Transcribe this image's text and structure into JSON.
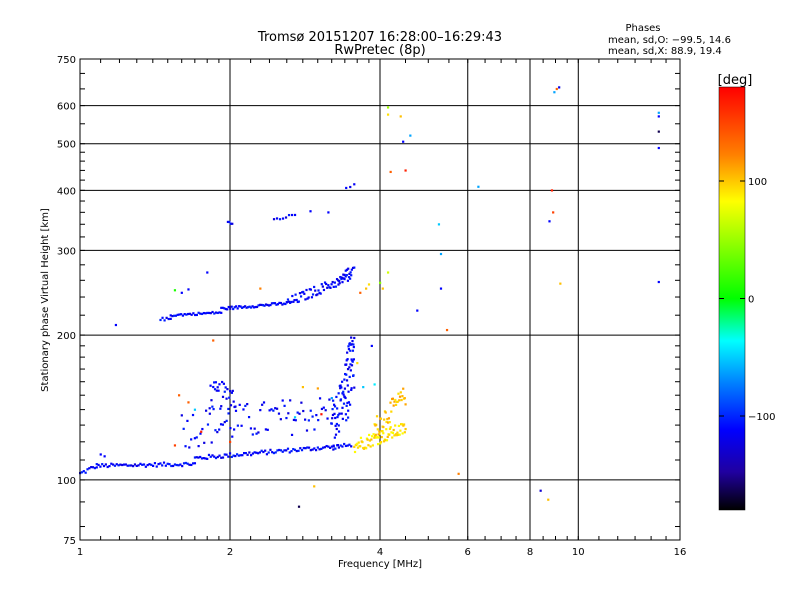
{
  "chart_data": {
    "type": "scatter",
    "title": "Tromsø 20151207 16:28:00–16:29:43",
    "subtitle": "RwPretec (8p)",
    "xlabel": "Frequency [MHz]",
    "ylabel": "Stationary phase Virtual Height [km]",
    "xscale": "log",
    "yscale": "log",
    "xlim": [
      1,
      16
    ],
    "ylim": [
      75,
      750
    ],
    "xticks": [
      1,
      2,
      4,
      6,
      8,
      10,
      16
    ],
    "xtick_labels": [
      "1",
      "2",
      "4",
      "6",
      "8",
      "10",
      "16"
    ],
    "yticks": [
      75,
      100,
      200,
      300,
      400,
      500,
      600,
      750
    ],
    "ytick_labels": [
      "75",
      "100",
      "200",
      "300",
      "400",
      "500",
      "600",
      "750"
    ],
    "grid": true,
    "stats": {
      "title": "Phases",
      "line_o": "mean, sd,O: −99.5, 14.6",
      "line_x": "mean, sd,X:  88.9, 19.4"
    },
    "colorbar": {
      "label": "[deg]",
      "min": -180,
      "max": 180,
      "ticks": [
        100,
        0,
        -100
      ],
      "tick_labels": [
        "100",
        "0",
        "−100"
      ]
    },
    "traces": [
      {
        "x0": 1.0,
        "x1": 1.08,
        "h0": 103,
        "h1": 107,
        "n": 10,
        "jitter": 1.2,
        "phase": -100
      },
      {
        "x0": 1.08,
        "x1": 1.7,
        "h0": 107,
        "h1": 108,
        "n": 55,
        "jitter": 1.0,
        "phase": -100
      },
      {
        "x0": 1.7,
        "x1": 3.5,
        "h0": 111,
        "h1": 118,
        "n": 90,
        "jitter": 1.2,
        "phase": -100
      },
      {
        "x0": 1.82,
        "x1": 2.05,
        "h0": 150,
        "h1": 150,
        "n": 30,
        "jitter": 10,
        "phase": -100
      },
      {
        "x0": 1.6,
        "x1": 3.45,
        "h0": 128,
        "h1": 140,
        "n": 90,
        "jitter": 12,
        "phase": -100
      },
      {
        "x0": 3.2,
        "x1": 3.55,
        "h0": 125,
        "h1": 165,
        "n": 60,
        "jitter": 18,
        "phase": -100
      },
      {
        "x0": 3.4,
        "x1": 3.55,
        "h0": 165,
        "h1": 200,
        "n": 22,
        "jitter": 12,
        "phase": -100
      },
      {
        "x0": 3.55,
        "x1": 4.5,
        "h0": 118,
        "h1": 128,
        "n": 70,
        "jitter": 4,
        "phase": 110
      },
      {
        "x0": 3.9,
        "x1": 4.5,
        "h0": 128,
        "h1": 150,
        "n": 40,
        "jitter": 7,
        "phase": 120
      },
      {
        "x0": 1.45,
        "x1": 1.52,
        "h0": 216,
        "h1": 216,
        "n": 6,
        "jitter": 1.5,
        "phase": -100
      },
      {
        "x0": 1.52,
        "x1": 1.92,
        "h0": 220,
        "h1": 223,
        "n": 30,
        "jitter": 1.2,
        "phase": -100
      },
      {
        "x0": 1.92,
        "x1": 2.6,
        "h0": 227,
        "h1": 233,
        "n": 45,
        "jitter": 1.5,
        "phase": -100
      },
      {
        "x0": 2.6,
        "x1": 3.5,
        "h0": 233,
        "h1": 265,
        "n": 60,
        "jitter": 6,
        "phase": -100
      },
      {
        "x0": 3.3,
        "x1": 3.55,
        "h0": 255,
        "h1": 282,
        "n": 14,
        "jitter": 6,
        "phase": -100
      },
      {
        "x0": 1.98,
        "x1": 2.02,
        "h0": 343,
        "h1": 342,
        "n": 4,
        "jitter": 1.5,
        "phase": -100
      },
      {
        "x0": 2.45,
        "x1": 2.7,
        "h0": 348,
        "h1": 356,
        "n": 8,
        "jitter": 2,
        "phase": -100
      },
      {
        "x0": 3.42,
        "x1": 3.55,
        "h0": 405,
        "h1": 412,
        "n": 3,
        "jitter": 2,
        "phase": -100
      }
    ],
    "points": [
      {
        "x": 1.18,
        "y": 210,
        "phase": -100
      },
      {
        "x": 1.1,
        "y": 113,
        "phase": -100
      },
      {
        "x": 1.12,
        "y": 112,
        "phase": -100
      },
      {
        "x": 1.55,
        "y": 248,
        "phase": 10
      },
      {
        "x": 1.6,
        "y": 245,
        "phase": -100
      },
      {
        "x": 1.65,
        "y": 249,
        "phase": -100
      },
      {
        "x": 1.8,
        "y": 270,
        "phase": -100
      },
      {
        "x": 1.85,
        "y": 195,
        "phase": 150
      },
      {
        "x": 1.65,
        "y": 145,
        "phase": 150
      },
      {
        "x": 1.58,
        "y": 150,
        "phase": 150
      },
      {
        "x": 1.7,
        "y": 140,
        "phase": -30
      },
      {
        "x": 1.75,
        "y": 126,
        "phase": 170
      },
      {
        "x": 1.55,
        "y": 118,
        "phase": 160
      },
      {
        "x": 2.0,
        "y": 120,
        "phase": 160
      },
      {
        "x": 2.3,
        "y": 250,
        "phase": 140
      },
      {
        "x": 2.7,
        "y": 135,
        "phase": -30
      },
      {
        "x": 2.8,
        "y": 156,
        "phase": 120
      },
      {
        "x": 2.9,
        "y": 362,
        "phase": -100
      },
      {
        "x": 3.0,
        "y": 155,
        "phase": 130
      },
      {
        "x": 3.05,
        "y": 137,
        "phase": 175
      },
      {
        "x": 3.15,
        "y": 360,
        "phase": -100
      },
      {
        "x": 3.2,
        "y": 148,
        "phase": -40
      },
      {
        "x": 3.6,
        "y": 175,
        "phase": 110
      },
      {
        "x": 3.65,
        "y": 245,
        "phase": 150
      },
      {
        "x": 3.7,
        "y": 156,
        "phase": -30
      },
      {
        "x": 3.75,
        "y": 250,
        "phase": 120
      },
      {
        "x": 3.8,
        "y": 255,
        "phase": 110
      },
      {
        "x": 3.85,
        "y": 190,
        "phase": -100
      },
      {
        "x": 3.9,
        "y": 158,
        "phase": -20
      },
      {
        "x": 4.0,
        "y": 257,
        "phase": 50
      },
      {
        "x": 4.05,
        "y": 250,
        "phase": 120
      },
      {
        "x": 4.15,
        "y": 270,
        "phase": 80
      },
      {
        "x": 4.15,
        "y": 595,
        "phase": 60
      },
      {
        "x": 4.15,
        "y": 575,
        "phase": 110
      },
      {
        "x": 4.2,
        "y": 437,
        "phase": 150
      },
      {
        "x": 4.4,
        "y": 570,
        "phase": 120
      },
      {
        "x": 4.45,
        "y": 505,
        "phase": -100
      },
      {
        "x": 4.5,
        "y": 440,
        "phase": 170
      },
      {
        "x": 4.6,
        "y": 520,
        "phase": -40
      },
      {
        "x": 4.75,
        "y": 225,
        "phase": -100
      },
      {
        "x": 5.25,
        "y": 340,
        "phase": -30
      },
      {
        "x": 5.3,
        "y": 295,
        "phase": -40
      },
      {
        "x": 5.3,
        "y": 250,
        "phase": -100
      },
      {
        "x": 5.45,
        "y": 205,
        "phase": 150
      },
      {
        "x": 5.75,
        "y": 103,
        "phase": 140
      },
      {
        "x": 6.3,
        "y": 407,
        "phase": -40
      },
      {
        "x": 8.4,
        "y": 95,
        "phase": -120
      },
      {
        "x": 8.7,
        "y": 91,
        "phase": 120
      },
      {
        "x": 8.75,
        "y": 345,
        "phase": -100
      },
      {
        "x": 8.85,
        "y": 400,
        "phase": 170
      },
      {
        "x": 8.9,
        "y": 360,
        "phase": 160
      },
      {
        "x": 8.95,
        "y": 640,
        "phase": -40
      },
      {
        "x": 9.05,
        "y": 650,
        "phase": 150
      },
      {
        "x": 9.15,
        "y": 655,
        "phase": -110
      },
      {
        "x": 9.2,
        "y": 256,
        "phase": 120
      },
      {
        "x": 2.95,
        "y": 97,
        "phase": 120
      },
      {
        "x": 2.75,
        "y": 88,
        "phase": -160
      },
      {
        "x": 14.5,
        "y": 580,
        "phase": -40
      },
      {
        "x": 14.5,
        "y": 570,
        "phase": -100
      },
      {
        "x": 14.5,
        "y": 530,
        "phase": -160
      },
      {
        "x": 14.5,
        "y": 490,
        "phase": -100
      },
      {
        "x": 14.5,
        "y": 258,
        "phase": -100
      }
    ]
  }
}
